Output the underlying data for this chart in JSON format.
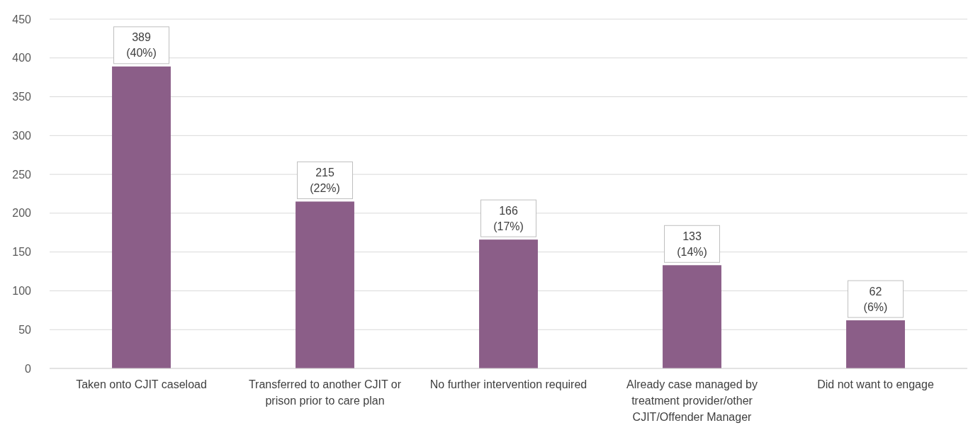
{
  "chart_data": {
    "type": "bar",
    "categories": [
      "Taken onto CJIT caseload",
      "Transferred to another CJIT or prison prior to care plan",
      "No further intervention required",
      "Already case managed by treatment provider/other CJIT/Offender Manager",
      "Did not want to engage"
    ],
    "values": [
      389,
      215,
      166,
      133,
      62
    ],
    "value_labels": [
      "389 (40%)",
      "215 (22%)",
      "166 (17%)",
      "133 (14%)",
      "62 (6%)"
    ],
    "color": "#8b5e88",
    "ylim": [
      0,
      450
    ],
    "yticks": [
      0,
      50,
      100,
      150,
      200,
      250,
      300,
      350,
      400,
      450
    ],
    "grid": "y"
  }
}
